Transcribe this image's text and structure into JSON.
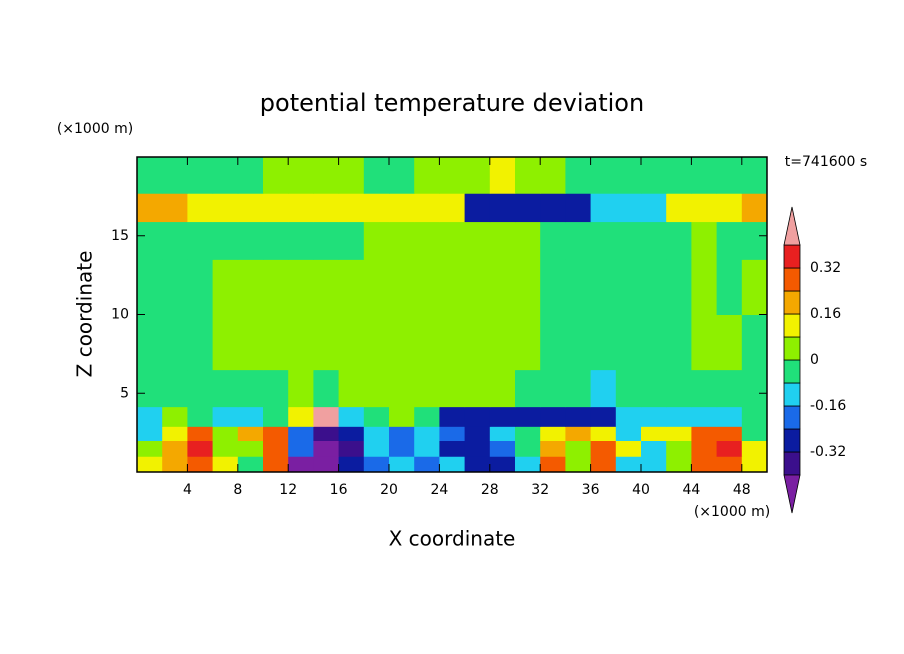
{
  "chart_data": {
    "type": "contourf",
    "title": "potential temperature deviation",
    "x_label": "X coordinate",
    "y_label": "Z coordinate",
    "x_unit": "(×1000 m)",
    "y_unit": "(×1000 m)",
    "time_label": "t=741600 s",
    "xlim": [
      0,
      50
    ],
    "ylim": [
      0,
      20
    ],
    "xticks": [
      4,
      8,
      12,
      16,
      20,
      24,
      28,
      32,
      36,
      40,
      44,
      48
    ],
    "yticks": [
      5,
      10,
      15
    ],
    "levels": [
      -0.4,
      -0.32,
      -0.24,
      -0.16,
      -0.08,
      0,
      0.08,
      0.16,
      0.24,
      0.32,
      0.4
    ],
    "colors": [
      "#7a1fa2",
      "#3b0f8c",
      "#0b1ca0",
      "#1a6ae8",
      "#20d0f0",
      "#20e07a",
      "#8ef000",
      "#f2f200",
      "#f4a800",
      "#f45a00",
      "#e82020",
      "#f0a0a0"
    ],
    "colorbar_ticks": [
      0.32,
      0.16,
      0,
      -0.16,
      -0.32
    ],
    "x": [
      1,
      3,
      5,
      7,
      9,
      11,
      13,
      15,
      17,
      19,
      21,
      23,
      25,
      27,
      29,
      31,
      33,
      35,
      37,
      39,
      41,
      43,
      45,
      47,
      49
    ],
    "y": [
      0.5,
      1.5,
      2.5,
      3.3,
      5,
      8,
      12,
      15,
      16.8,
      18.6
    ],
    "z": [
      [
        0.1,
        0.2,
        0.3,
        0.1,
        -0.05,
        0.3,
        -0.45,
        -0.45,
        -0.3,
        -0.2,
        -0.1,
        -0.2,
        -0.1,
        -0.3,
        -0.3,
        -0.1,
        0.3,
        0.05,
        0.3,
        -0.1,
        -0.1,
        0.05,
        0.25,
        0.3,
        0.1
      ],
      [
        0.05,
        0.2,
        0.35,
        0.05,
        0.05,
        0.3,
        -0.2,
        -0.45,
        -0.35,
        -0.1,
        -0.2,
        -0.15,
        -0.3,
        -0.3,
        -0.2,
        -0.05,
        0.2,
        0.05,
        0.3,
        0.1,
        -0.1,
        0.05,
        0.3,
        0.35,
        0.1
      ],
      [
        -0.1,
        0.1,
        0.3,
        0.05,
        0.2,
        0.3,
        -0.2,
        -0.4,
        -0.3,
        -0.1,
        -0.2,
        -0.1,
        -0.2,
        -0.25,
        -0.15,
        -0.05,
        0.1,
        0.2,
        0.1,
        -0.1,
        0.1,
        0.1,
        0.3,
        0.25,
        -0.05
      ],
      [
        -0.1,
        0.05,
        -0.05,
        -0.1,
        -0.1,
        -0.05,
        0.1,
        0.45,
        -0.1,
        -0.05,
        0.05,
        -0.05,
        -0.25,
        -0.3,
        -0.25,
        -0.25,
        -0.3,
        -0.25,
        -0.3,
        -0.1,
        -0.1,
        -0.1,
        -0.1,
        -0.1,
        -0.05
      ],
      [
        -0.04,
        -0.04,
        -0.04,
        -0.04,
        -0.04,
        -0.04,
        0.04,
        -0.04,
        0.04,
        0.04,
        0.04,
        0.04,
        0.04,
        0.04,
        0.04,
        -0.04,
        -0.04,
        -0.04,
        -0.12,
        -0.04,
        -0.04,
        -0.04,
        -0.04,
        -0.04,
        -0.04
      ],
      [
        -0.04,
        -0.04,
        -0.04,
        0.04,
        0.04,
        0.04,
        0.04,
        0.04,
        0.04,
        0.04,
        0.04,
        0.04,
        0.04,
        0.04,
        0.04,
        0.04,
        -0.04,
        -0.04,
        -0.04,
        -0.04,
        -0.04,
        -0.04,
        0.04,
        0.04,
        -0.04
      ],
      [
        -0.04,
        -0.04,
        -0.04,
        0.04,
        0.04,
        0.04,
        0.04,
        0.04,
        0.04,
        0.04,
        0.04,
        0.04,
        0.04,
        0.04,
        0.04,
        0.04,
        -0.04,
        -0.04,
        -0.04,
        -0.04,
        -0.04,
        -0.04,
        0.04,
        -0.04,
        0.04
      ],
      [
        -0.04,
        -0.04,
        -0.04,
        -0.04,
        -0.04,
        -0.04,
        -0.04,
        -0.04,
        -0.04,
        0.04,
        0.04,
        0.04,
        0.04,
        0.04,
        0.04,
        0.04,
        -0.04,
        -0.04,
        -0.04,
        -0.04,
        -0.04,
        -0.04,
        0.04,
        -0.04,
        -0.04
      ],
      [
        0.2,
        0.2,
        0.1,
        0.1,
        0.1,
        0.1,
        0.1,
        0.1,
        0.1,
        0.1,
        0.1,
        0.1,
        0.1,
        -0.3,
        -0.3,
        -0.3,
        -0.3,
        -0.3,
        -0.1,
        -0.1,
        -0.1,
        0.1,
        0.1,
        0.1,
        0.2
      ],
      [
        -0.04,
        -0.04,
        -0.04,
        -0.04,
        -0.04,
        0.04,
        0.04,
        0.04,
        0.04,
        -0.04,
        -0.04,
        0.04,
        0.04,
        0.04,
        0.12,
        0.04,
        0.04,
        -0.04,
        -0.04,
        -0.04,
        -0.04,
        -0.04,
        -0.04,
        -0.04,
        -0.04
      ]
    ]
  }
}
